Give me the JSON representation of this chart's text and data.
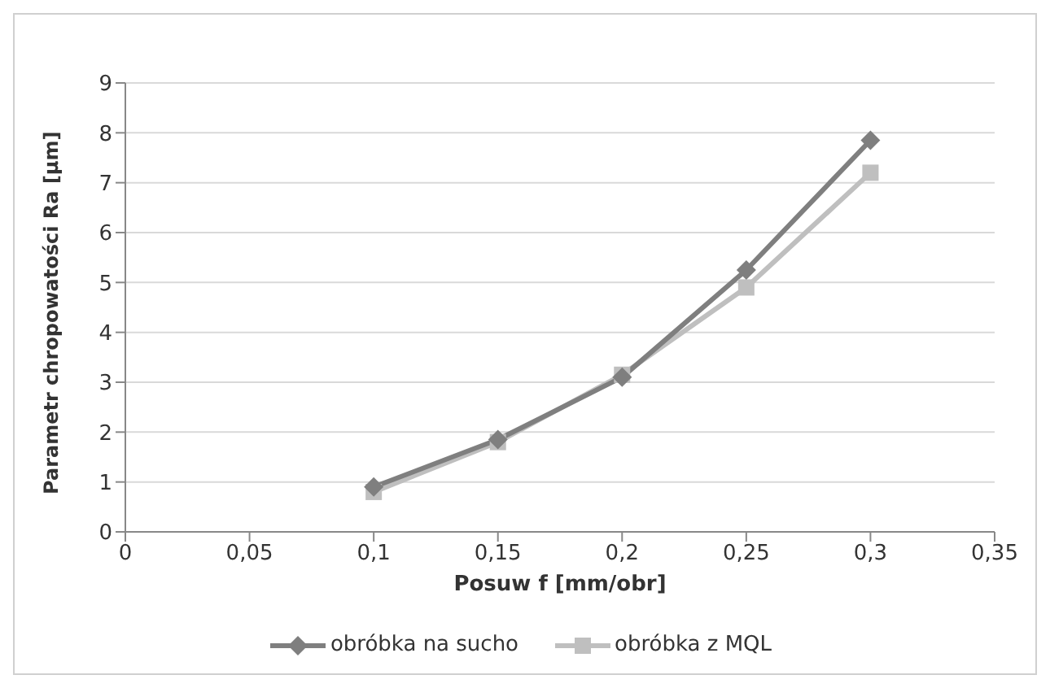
{
  "chart_data": {
    "type": "line",
    "xlabel": "Posuw f [mm/obr]",
    "ylabel": "Parametr chropowatości Ra [µm]",
    "x": [
      0.1,
      0.15,
      0.2,
      0.25,
      0.3
    ],
    "series": [
      {
        "name": "obróbka na sucho",
        "color": "#7f7f7f",
        "values": [
          0.9,
          1.85,
          3.1,
          5.25,
          7.85
        ],
        "marker": "diamond"
      },
      {
        "name": "obróbka z MQL",
        "color": "#bfbfbf",
        "values": [
          0.8,
          1.8,
          3.15,
          4.9,
          7.2
        ],
        "marker": "square"
      }
    ],
    "xlim": [
      0,
      0.35
    ],
    "xticks": [
      0,
      {
        "value": 0.05,
        "label": "0,05"
      },
      {
        "value": 0.1,
        "label": "0,1"
      },
      {
        "value": 0.15,
        "label": "0,15"
      },
      {
        "value": 0.2,
        "label": "0,2"
      },
      {
        "value": 0.25,
        "label": "0,25"
      },
      {
        "value": 0.3,
        "label": "0,3"
      },
      {
        "value": 0.35,
        "label": "0,35"
      }
    ],
    "ylim": [
      0,
      9
    ],
    "yticks": [
      0,
      1,
      2,
      3,
      4,
      5,
      6,
      7,
      8,
      9
    ],
    "grid": "y",
    "legend": "bottom",
    "line_style": "solid"
  }
}
